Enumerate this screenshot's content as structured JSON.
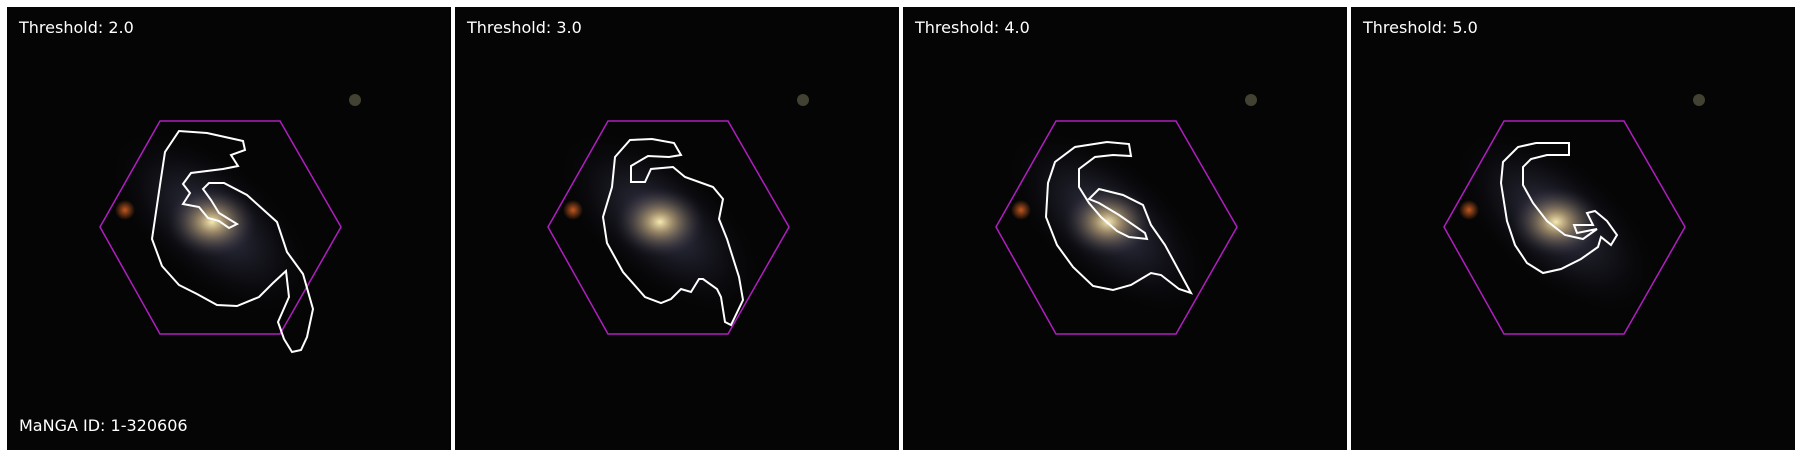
{
  "panels": [
    {
      "label": "Threshold: 2.0"
    },
    {
      "label": "Threshold: 3.0"
    },
    {
      "label": "Threshold: 4.0"
    },
    {
      "label": "Threshold: 5.0"
    }
  ],
  "galaxy_id_label": "MaNGA ID: 1-320606",
  "colors": {
    "hexagon": "#b01ec0",
    "contour": "#ffffff",
    "background": "#050505"
  }
}
